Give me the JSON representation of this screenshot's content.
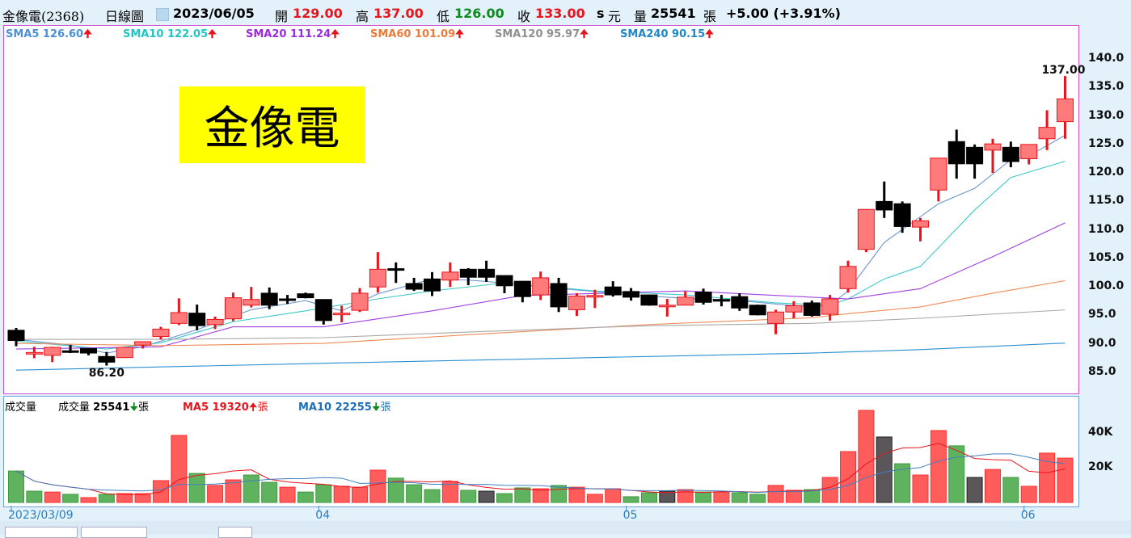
{
  "header": {
    "stock_name": "金像電(2368)",
    "period": "日線圖",
    "date": "2023/06/05",
    "open_label": "開",
    "open": "129.00",
    "high_label": "高",
    "high": "137.00",
    "low_label": "低",
    "low": "126.00",
    "close_label": "收",
    "close": "133.00",
    "unit_s": "s",
    "unit_currency": "元",
    "volume_label": "量",
    "volume": "25541",
    "volume_unit": "張",
    "change": "+5.00 (+3.91%)"
  },
  "sma_legend": [
    {
      "label": "SMA5 126.60",
      "color": "#4a8fd8",
      "trend": "up"
    },
    {
      "label": "SMA10 122.05",
      "color": "#22c4c4",
      "trend": "up"
    },
    {
      "label": "SMA20 111.24",
      "color": "#9b2be0",
      "trend": "up"
    },
    {
      "label": "SMA60 101.09",
      "color": "#ee7a3a",
      "trend": "up"
    },
    {
      "label": "SMA120 95.97",
      "color": "#8f8f8f",
      "trend": "up"
    },
    {
      "label": "SMA240 90.15",
      "color": "#1f86c8",
      "trend": "up"
    }
  ],
  "arrow_up": "🠉",
  "volume_legend": {
    "title": "成交量",
    "vol_label": "成交量",
    "vol_value": "25541",
    "vol_trend": "down",
    "unit": "張",
    "ma5": "MA5 19320",
    "ma5_trend": "up",
    "ma10": "MA10 22255",
    "ma10_trend": "down"
  },
  "watermark": "金像電",
  "chart_data": {
    "type": "candlestick",
    "price_axis": {
      "ticks": [
        "140.0",
        "135.0",
        "130.0",
        "125.0",
        "120.0",
        "115.0",
        "110.0",
        "105.0",
        "100.0",
        "95.0",
        "90.0",
        "85.0"
      ],
      "ylim": [
        85,
        140
      ]
    },
    "volume_axis": {
      "ticks": [
        "40K",
        "20K"
      ]
    },
    "x_ticks": [
      {
        "index": 0,
        "label": "2023/03/09"
      },
      {
        "index": 17,
        "label": "04"
      },
      {
        "index": 34,
        "label": "05"
      },
      {
        "index": 56,
        "label": "06"
      }
    ],
    "high_marker": {
      "index": 58,
      "label": "137.00"
    },
    "low_marker": {
      "index": 5,
      "label": "86.20"
    },
    "ohlc": [
      [
        92.4,
        92.8,
        89.6,
        90.6
      ],
      [
        88.5,
        89.5,
        87.5,
        88.5
      ],
      [
        88.0,
        89.5,
        86.8,
        89.4
      ],
      [
        88.8,
        89.8,
        88.4,
        88.6
      ],
      [
        89.2,
        89.2,
        88.0,
        88.4
      ],
      [
        87.8,
        88.6,
        86.2,
        86.8
      ],
      [
        87.6,
        89.4,
        87.6,
        89.4
      ],
      [
        89.8,
        90.4,
        89.2,
        90.4
      ],
      [
        91.3,
        93.0,
        90.8,
        92.6
      ],
      [
        93.6,
        98.0,
        93.3,
        95.5
      ],
      [
        95.4,
        96.9,
        92.4,
        93.2
      ],
      [
        93.4,
        94.8,
        92.6,
        94.3
      ],
      [
        94.4,
        99.0,
        94.0,
        98.1
      ],
      [
        96.8,
        100.0,
        96.4,
        97.8
      ],
      [
        98.9,
        99.9,
        96.1,
        96.8
      ],
      [
        97.9,
        98.6,
        97.0,
        97.8
      ],
      [
        98.8,
        99.0,
        98.0,
        98.1
      ],
      [
        97.8,
        97.8,
        93.4,
        94.1
      ],
      [
        95.3,
        96.7,
        93.8,
        95.4
      ],
      [
        95.9,
        99.8,
        95.6,
        98.9
      ],
      [
        100.0,
        106.1,
        99.0,
        103.1
      ],
      [
        103.2,
        104.3,
        100.7,
        103.1
      ],
      [
        100.6,
        101.6,
        99.3,
        99.6
      ],
      [
        101.4,
        102.6,
        98.4,
        99.3
      ],
      [
        101.2,
        104.3,
        100.0,
        102.6
      ],
      [
        103.1,
        103.3,
        100.3,
        101.7
      ],
      [
        103.1,
        104.6,
        100.9,
        101.7
      ],
      [
        102.0,
        102.0,
        98.9,
        100.2
      ],
      [
        101.0,
        101.0,
        97.3,
        98.3
      ],
      [
        98.6,
        102.7,
        97.7,
        101.6
      ],
      [
        100.6,
        101.6,
        95.6,
        96.5
      ],
      [
        96.0,
        98.9,
        94.9,
        98.4
      ],
      [
        98.3,
        99.5,
        96.3,
        98.5
      ],
      [
        100.0,
        101.0,
        98.3,
        98.6
      ],
      [
        99.2,
        99.8,
        97.6,
        98.2
      ],
      [
        98.6,
        98.6,
        96.7,
        96.8
      ],
      [
        96.6,
        97.9,
        94.8,
        96.8
      ],
      [
        96.8,
        99.2,
        96.8,
        98.2
      ],
      [
        99.1,
        99.7,
        96.9,
        97.3
      ],
      [
        97.8,
        98.6,
        96.6,
        97.5
      ],
      [
        98.3,
        98.9,
        95.8,
        96.3
      ],
      [
        96.8,
        96.9,
        95.0,
        95.1
      ],
      [
        93.6,
        96.0,
        91.7,
        95.6
      ],
      [
        95.6,
        97.5,
        94.5,
        96.7
      ],
      [
        97.2,
        97.6,
        94.8,
        95.0
      ],
      [
        95.2,
        98.6,
        94.1,
        97.9
      ],
      [
        99.7,
        104.6,
        99.0,
        103.6
      ],
      [
        106.6,
        113.6,
        106.1,
        113.6
      ],
      [
        115.0,
        118.5,
        112.1,
        113.5
      ],
      [
        114.6,
        115.0,
        109.5,
        110.6
      ],
      [
        110.5,
        112.1,
        108.0,
        111.6
      ],
      [
        117.0,
        122.6,
        115.0,
        122.6
      ],
      [
        125.5,
        127.6,
        119.0,
        121.6
      ],
      [
        124.5,
        125.0,
        119.0,
        121.6
      ],
      [
        124.0,
        126.0,
        120.0,
        125.1
      ],
      [
        124.5,
        125.5,
        121.0,
        122.0
      ],
      [
        122.5,
        125.0,
        121.5,
        125.0
      ],
      [
        126.0,
        131.0,
        124.0,
        128.0
      ],
      [
        129.0,
        137.0,
        126.0,
        133.0
      ]
    ],
    "volume": [
      18100,
      6500,
      6000,
      4700,
      2800,
      4700,
      5100,
      5100,
      12600,
      38600,
      16700,
      9800,
      13000,
      15800,
      11600,
      8800,
      6000,
      10200,
      9300,
      8800,
      18600,
      14000,
      10200,
      7400,
      12100,
      7000,
      6500,
      5100,
      8400,
      7900,
      9800,
      8800,
      4700,
      7900,
      3300,
      5600,
      6500,
      7400,
      6000,
      6000,
      5600,
      4700,
      9800,
      7000,
      7400,
      14400,
      29300,
      53000,
      37700,
      22300,
      15800,
      41400,
      32600,
      14400,
      19000,
      14400,
      9300,
      28400,
      25541
    ],
    "volume_colors": [
      "g",
      "g",
      "r",
      "g",
      "r",
      "g",
      "r",
      "r",
      "r",
      "r",
      "g",
      "r",
      "r",
      "g",
      "g",
      "r",
      "g",
      "g",
      "r",
      "r",
      "r",
      "g",
      "g",
      "g",
      "r",
      "g",
      "d",
      "g",
      "g",
      "r",
      "g",
      "r",
      "r",
      "r",
      "g",
      "g",
      "d",
      "r",
      "g",
      "r",
      "g",
      "g",
      "r",
      "r",
      "g",
      "r",
      "r",
      "r",
      "d",
      "g",
      "r",
      "r",
      "g",
      "d",
      "r",
      "g",
      "r",
      "r",
      "r"
    ],
    "colors": {
      "up": "#e8141c",
      "up_fill": "#ff7b7b",
      "down": "#000000",
      "vol_red": "#ff5c5c",
      "vol_green": "#5fb35f",
      "vol_dark": "#5a565a",
      "vol_ma5": "#e8141c",
      "vol_ma10": "#3f7fc0"
    },
    "sma_series": [
      {
        "name": "SMA5",
        "color": "#6d94d0",
        "points": [
          [
            0,
            90.8
          ],
          [
            3,
            89.8
          ],
          [
            5,
            88.4
          ],
          [
            7,
            89.5
          ],
          [
            10,
            92.5
          ],
          [
            13,
            96.0
          ],
          [
            16,
            97.6
          ],
          [
            18,
            95.8
          ],
          [
            20,
            98.8
          ],
          [
            23,
            101.4
          ],
          [
            25,
            101.2
          ],
          [
            27,
            100.7
          ],
          [
            29,
            100.0
          ],
          [
            32,
            99.2
          ],
          [
            34,
            98.6
          ],
          [
            37,
            98.0
          ],
          [
            40,
            97.6
          ],
          [
            42,
            97.0
          ],
          [
            44,
            96.5
          ],
          [
            45,
            96.8
          ],
          [
            46,
            99.3
          ],
          [
            48,
            107.8
          ],
          [
            51,
            114.6
          ],
          [
            53,
            117.3
          ],
          [
            55,
            122.3
          ],
          [
            56,
            123.0
          ],
          [
            58,
            126.6
          ]
        ]
      },
      {
        "name": "SMA10",
        "color": "#3cc8c8",
        "points": [
          [
            0,
            90.5
          ],
          [
            5,
            89.1
          ],
          [
            8,
            90.2
          ],
          [
            12,
            93.9
          ],
          [
            16,
            95.8
          ],
          [
            20,
            97.9
          ],
          [
            23,
            99.3
          ],
          [
            27,
            100.7
          ],
          [
            32,
            99.3
          ],
          [
            37,
            98.6
          ],
          [
            42,
            97.2
          ],
          [
            45,
            96.8
          ],
          [
            46,
            97.9
          ],
          [
            48,
            101.4
          ],
          [
            50,
            103.6
          ],
          [
            53,
            113.5
          ],
          [
            55,
            119.2
          ],
          [
            58,
            122.05
          ]
        ]
      },
      {
        "name": "SMA20",
        "color": "#a040e0",
        "points": [
          [
            0,
            89.1
          ],
          [
            8,
            89.5
          ],
          [
            12,
            93.0
          ],
          [
            17,
            93.0
          ],
          [
            23,
            95.8
          ],
          [
            28,
            98.5
          ],
          [
            37,
            99.3
          ],
          [
            44,
            98.2
          ],
          [
            46,
            97.9
          ],
          [
            50,
            99.7
          ],
          [
            54,
            105.3
          ],
          [
            58,
            111.24
          ]
        ]
      },
      {
        "name": "SMA60",
        "color": "#ee8a55",
        "points": [
          [
            0,
            90.1
          ],
          [
            8,
            89.7
          ],
          [
            17,
            90.1
          ],
          [
            26,
            91.8
          ],
          [
            35,
            93.4
          ],
          [
            44,
            94.6
          ],
          [
            46,
            95.3
          ],
          [
            50,
            96.5
          ],
          [
            54,
            98.9
          ],
          [
            58,
            101.09
          ]
        ]
      },
      {
        "name": "SMA120",
        "color": "#a8a8a8",
        "points": [
          [
            0,
            90.8
          ],
          [
            8,
            90.8
          ],
          [
            17,
            91.1
          ],
          [
            26,
            92.2
          ],
          [
            35,
            93.2
          ],
          [
            44,
            93.6
          ],
          [
            50,
            94.5
          ],
          [
            58,
            95.97
          ]
        ]
      },
      {
        "name": "SMA240",
        "color": "#2a8fd0",
        "points": [
          [
            0,
            85.4
          ],
          [
            17,
            86.6
          ],
          [
            35,
            87.8
          ],
          [
            44,
            88.4
          ],
          [
            50,
            89.0
          ],
          [
            58,
            90.15
          ]
        ]
      }
    ]
  }
}
